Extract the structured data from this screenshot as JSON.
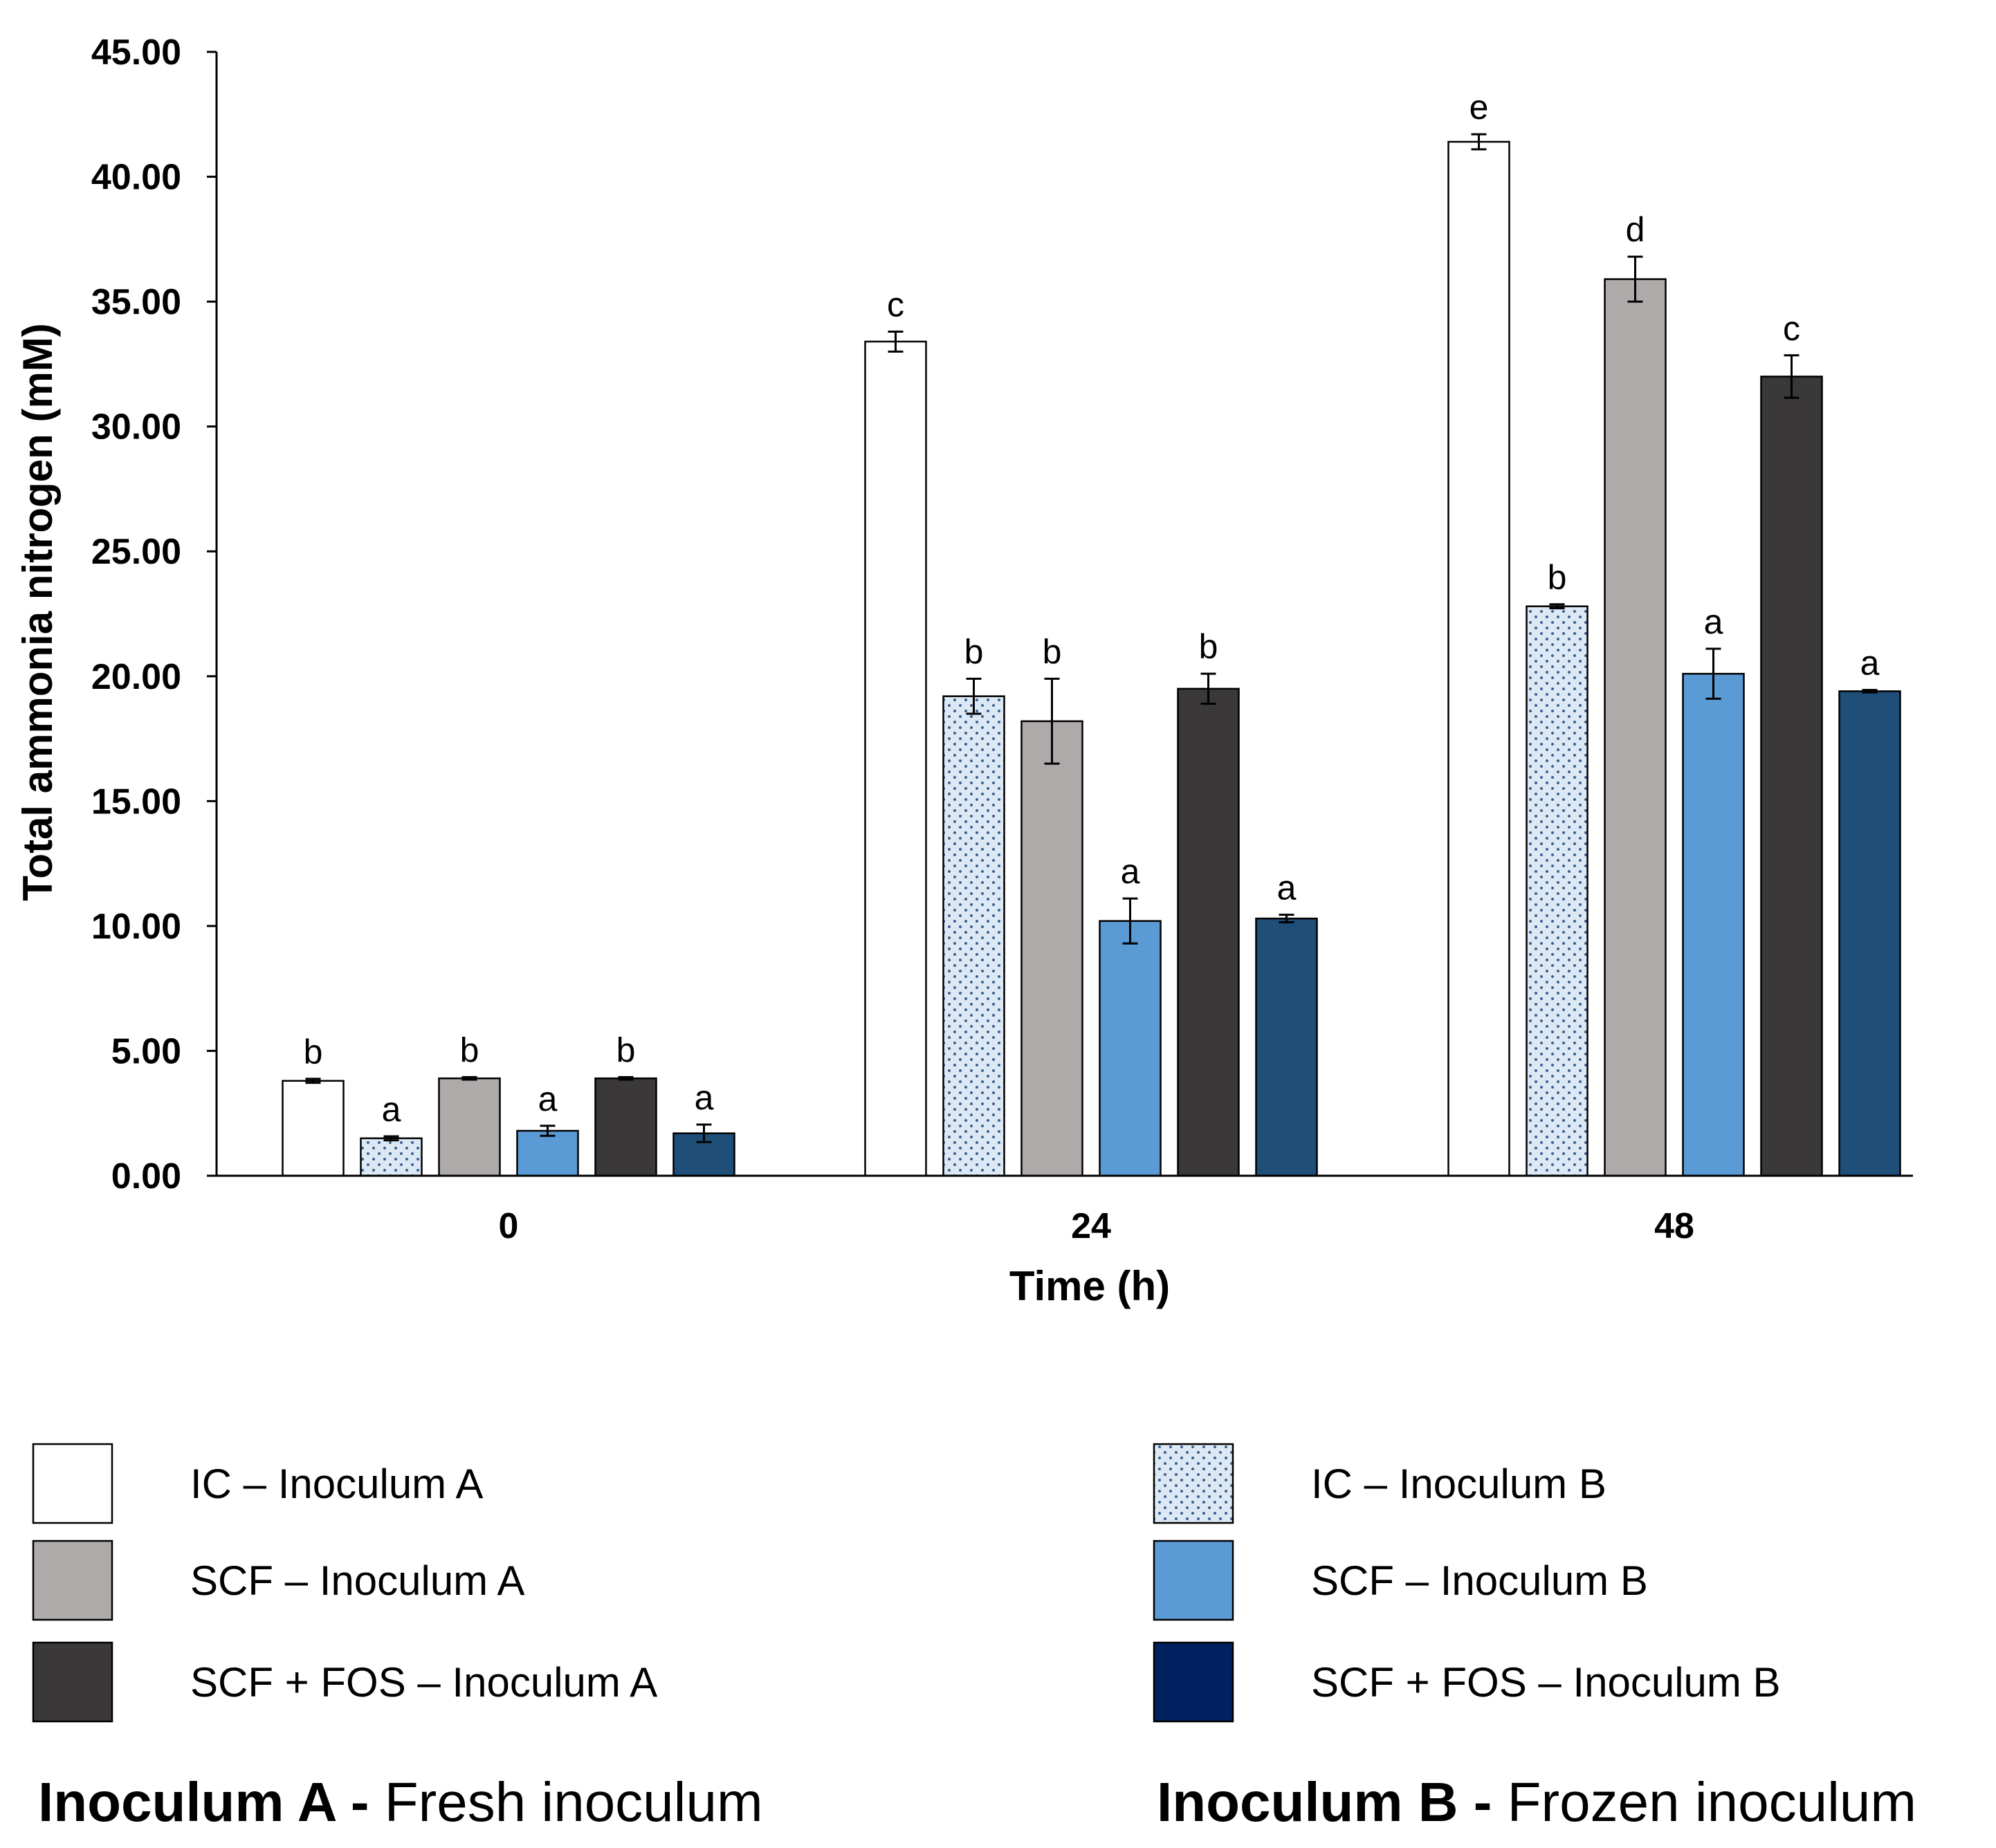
{
  "chart_data": {
    "type": "bar",
    "ylabel": "Total ammonia nitrogen (mM)",
    "xlabel": "Time (h)",
    "categories": [
      "0",
      "24",
      "48"
    ],
    "ylim": [
      0,
      45
    ],
    "yticks": [
      "0.00",
      "5.00",
      "10.00",
      "15.00",
      "20.00",
      "25.00",
      "30.00",
      "35.00",
      "40.00",
      "45.00"
    ],
    "legend_position": "bottom",
    "series": [
      {
        "name": "IC – Inoculum  A",
        "color": "#ffffff",
        "pattern": "none",
        "values": [
          3.8,
          33.4,
          41.4
        ],
        "errors": [
          0.08,
          0.4,
          0.3
        ],
        "letters": [
          "b",
          "c",
          "e"
        ]
      },
      {
        "name": "IC – Inoculum  B",
        "color": "#dde8f5",
        "pattern": "dots",
        "values": [
          1.5,
          19.2,
          22.8
        ],
        "errors": [
          0.08,
          0.7,
          0.08
        ],
        "letters": [
          "a",
          "b",
          "b"
        ]
      },
      {
        "name": "SCF – Inoculum  A",
        "color": "#aeaaa9",
        "pattern": "none",
        "values": [
          3.9,
          18.2,
          35.9
        ],
        "errors": [
          0.05,
          1.7,
          0.9
        ],
        "letters": [
          "b",
          "b",
          "d"
        ]
      },
      {
        "name": "SCF – Inoculum  B",
        "color": "#5b9bd5",
        "pattern": "none",
        "values": [
          1.8,
          10.2,
          20.1
        ],
        "errors": [
          0.2,
          0.9,
          1.0
        ],
        "letters": [
          "a",
          "a",
          "a"
        ]
      },
      {
        "name": "SCF + FOS – Inoculum  A",
        "color": "#3a3838",
        "pattern": "none",
        "values": [
          3.9,
          19.5,
          32.0
        ],
        "errors": [
          0.05,
          0.6,
          0.85
        ],
        "letters": [
          "b",
          "b",
          "c"
        ]
      },
      {
        "name": "SCF + FOS – Inoculum  B",
        "color": "#1f4e79",
        "pattern": "none",
        "values": [
          1.7,
          10.3,
          19.4
        ],
        "errors": [
          0.35,
          0.15,
          0.05
        ],
        "letters": [
          "a",
          "a",
          "a"
        ]
      }
    ],
    "legend_swatch_colors": [
      "#ffffff",
      "#dde8f5",
      "#aeaaa9",
      "#5b9bd5",
      "#3a3838",
      "#002060"
    ],
    "notes": [
      {
        "bold": "Inoculum A - ",
        "text": "Fresh inoculum"
      },
      {
        "bold": "Inoculum B - ",
        "text": "Frozen inoculum"
      }
    ]
  }
}
